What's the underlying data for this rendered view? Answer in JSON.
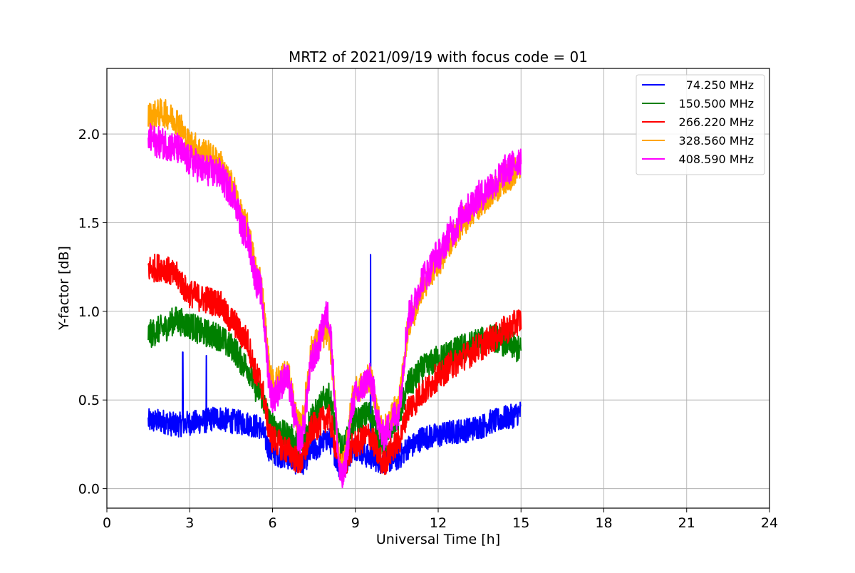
{
  "chart_data": {
    "type": "line",
    "title": "MRT2 of 2021/09/19 with focus code = 01",
    "xlabel": "Universal Time [h]",
    "ylabel": "Y-factor [dB]",
    "xlim": [
      0,
      24
    ],
    "ylim": [
      -0.11,
      2.37
    ],
    "xticks": [
      0,
      3,
      6,
      9,
      12,
      15,
      18,
      21,
      24
    ],
    "yticks": [
      0.0,
      0.5,
      1.0,
      1.5,
      2.0
    ],
    "xtick_labels": [
      "0",
      "3",
      "6",
      "9",
      "12",
      "15",
      "18",
      "21",
      "24"
    ],
    "ytick_labels": [
      "0.0",
      "0.5",
      "1.0",
      "1.5",
      "2.0"
    ],
    "grid": true,
    "legend_position": "top-right",
    "data_range_x": [
      1.5,
      15.0
    ],
    "series": [
      {
        "name": "74.250 MHz",
        "color": "#0000ff",
        "noise": 0.07,
        "x": [
          1.5,
          2.0,
          2.5,
          3.0,
          3.5,
          4.0,
          4.5,
          5.0,
          5.5,
          6.0,
          6.5,
          7.0,
          7.5,
          8.0,
          8.5,
          9.0,
          9.5,
          10.0,
          10.5,
          11.0,
          11.5,
          12.0,
          12.5,
          13.0,
          13.5,
          14.0,
          14.5,
          15.0
        ],
        "y": [
          0.38,
          0.38,
          0.36,
          0.37,
          0.38,
          0.4,
          0.38,
          0.37,
          0.35,
          0.2,
          0.18,
          0.14,
          0.22,
          0.28,
          0.12,
          0.23,
          0.18,
          0.15,
          0.17,
          0.24,
          0.29,
          0.3,
          0.32,
          0.33,
          0.35,
          0.38,
          0.4,
          0.43
        ],
        "spikes": [
          {
            "x": 2.75,
            "y": 0.77
          },
          {
            "x": 3.6,
            "y": 0.75
          },
          {
            "x": 9.55,
            "y": 1.32
          }
        ]
      },
      {
        "name": "150.500 MHz",
        "color": "#008000",
        "noise": 0.08,
        "x": [
          1.5,
          2.0,
          2.5,
          3.0,
          3.5,
          4.0,
          4.5,
          5.0,
          5.5,
          6.0,
          6.5,
          7.0,
          7.5,
          8.0,
          8.5,
          9.0,
          9.5,
          10.0,
          10.5,
          11.0,
          11.5,
          12.0,
          12.5,
          13.0,
          13.5,
          14.0,
          14.5,
          15.0
        ],
        "y": [
          0.87,
          0.9,
          0.95,
          0.92,
          0.88,
          0.86,
          0.8,
          0.7,
          0.55,
          0.35,
          0.3,
          0.25,
          0.42,
          0.52,
          0.22,
          0.38,
          0.42,
          0.25,
          0.4,
          0.6,
          0.68,
          0.73,
          0.77,
          0.8,
          0.83,
          0.85,
          0.82,
          0.78
        ],
        "spikes": []
      },
      {
        "name": "266.220 MHz",
        "color": "#ff0000",
        "noise": 0.08,
        "x": [
          1.5,
          2.0,
          2.5,
          3.0,
          3.5,
          4.0,
          4.5,
          5.0,
          5.5,
          6.0,
          6.5,
          7.0,
          7.5,
          8.0,
          8.5,
          9.0,
          9.5,
          10.0,
          10.5,
          11.0,
          11.5,
          12.0,
          12.5,
          13.0,
          13.5,
          14.0,
          14.5,
          15.0
        ],
        "y": [
          1.24,
          1.25,
          1.2,
          1.1,
          1.07,
          1.05,
          0.95,
          0.85,
          0.62,
          0.28,
          0.22,
          0.15,
          0.35,
          0.4,
          0.12,
          0.25,
          0.3,
          0.15,
          0.25,
          0.47,
          0.55,
          0.63,
          0.7,
          0.75,
          0.8,
          0.85,
          0.9,
          0.95
        ],
        "spikes": []
      },
      {
        "name": "328.560 MHz",
        "color": "#ffa500",
        "noise": 0.08,
        "x": [
          1.5,
          2.0,
          2.5,
          3.0,
          3.5,
          4.0,
          4.5,
          5.0,
          5.5,
          6.0,
          6.5,
          7.0,
          7.5,
          8.0,
          8.5,
          9.0,
          9.5,
          10.0,
          10.5,
          11.0,
          11.5,
          12.0,
          12.5,
          13.0,
          13.5,
          14.0,
          14.5,
          15.0
        ],
        "y": [
          2.1,
          2.12,
          2.08,
          1.95,
          1.9,
          1.85,
          1.72,
          1.5,
          1.2,
          0.6,
          0.65,
          0.35,
          0.82,
          0.88,
          0.12,
          0.55,
          0.62,
          0.33,
          0.45,
          0.95,
          1.15,
          1.28,
          1.4,
          1.52,
          1.6,
          1.68,
          1.75,
          1.82
        ],
        "spikes": []
      },
      {
        "name": "408.590 MHz",
        "color": "#ff00ff",
        "noise": 0.09,
        "x": [
          1.5,
          2.0,
          2.5,
          3.0,
          3.5,
          4.0,
          4.5,
          5.0,
          5.5,
          6.0,
          6.5,
          7.0,
          7.5,
          8.0,
          8.5,
          9.0,
          9.5,
          10.0,
          10.5,
          11.0,
          11.5,
          12.0,
          12.5,
          13.0,
          13.5,
          14.0,
          14.5,
          15.0
        ],
        "y": [
          1.97,
          1.95,
          1.92,
          1.85,
          1.8,
          1.78,
          1.68,
          1.45,
          1.15,
          0.52,
          0.62,
          0.28,
          0.75,
          0.98,
          0.05,
          0.52,
          0.62,
          0.3,
          0.42,
          1.0,
          1.2,
          1.32,
          1.45,
          1.57,
          1.65,
          1.72,
          1.8,
          1.86
        ],
        "spikes": []
      }
    ]
  }
}
